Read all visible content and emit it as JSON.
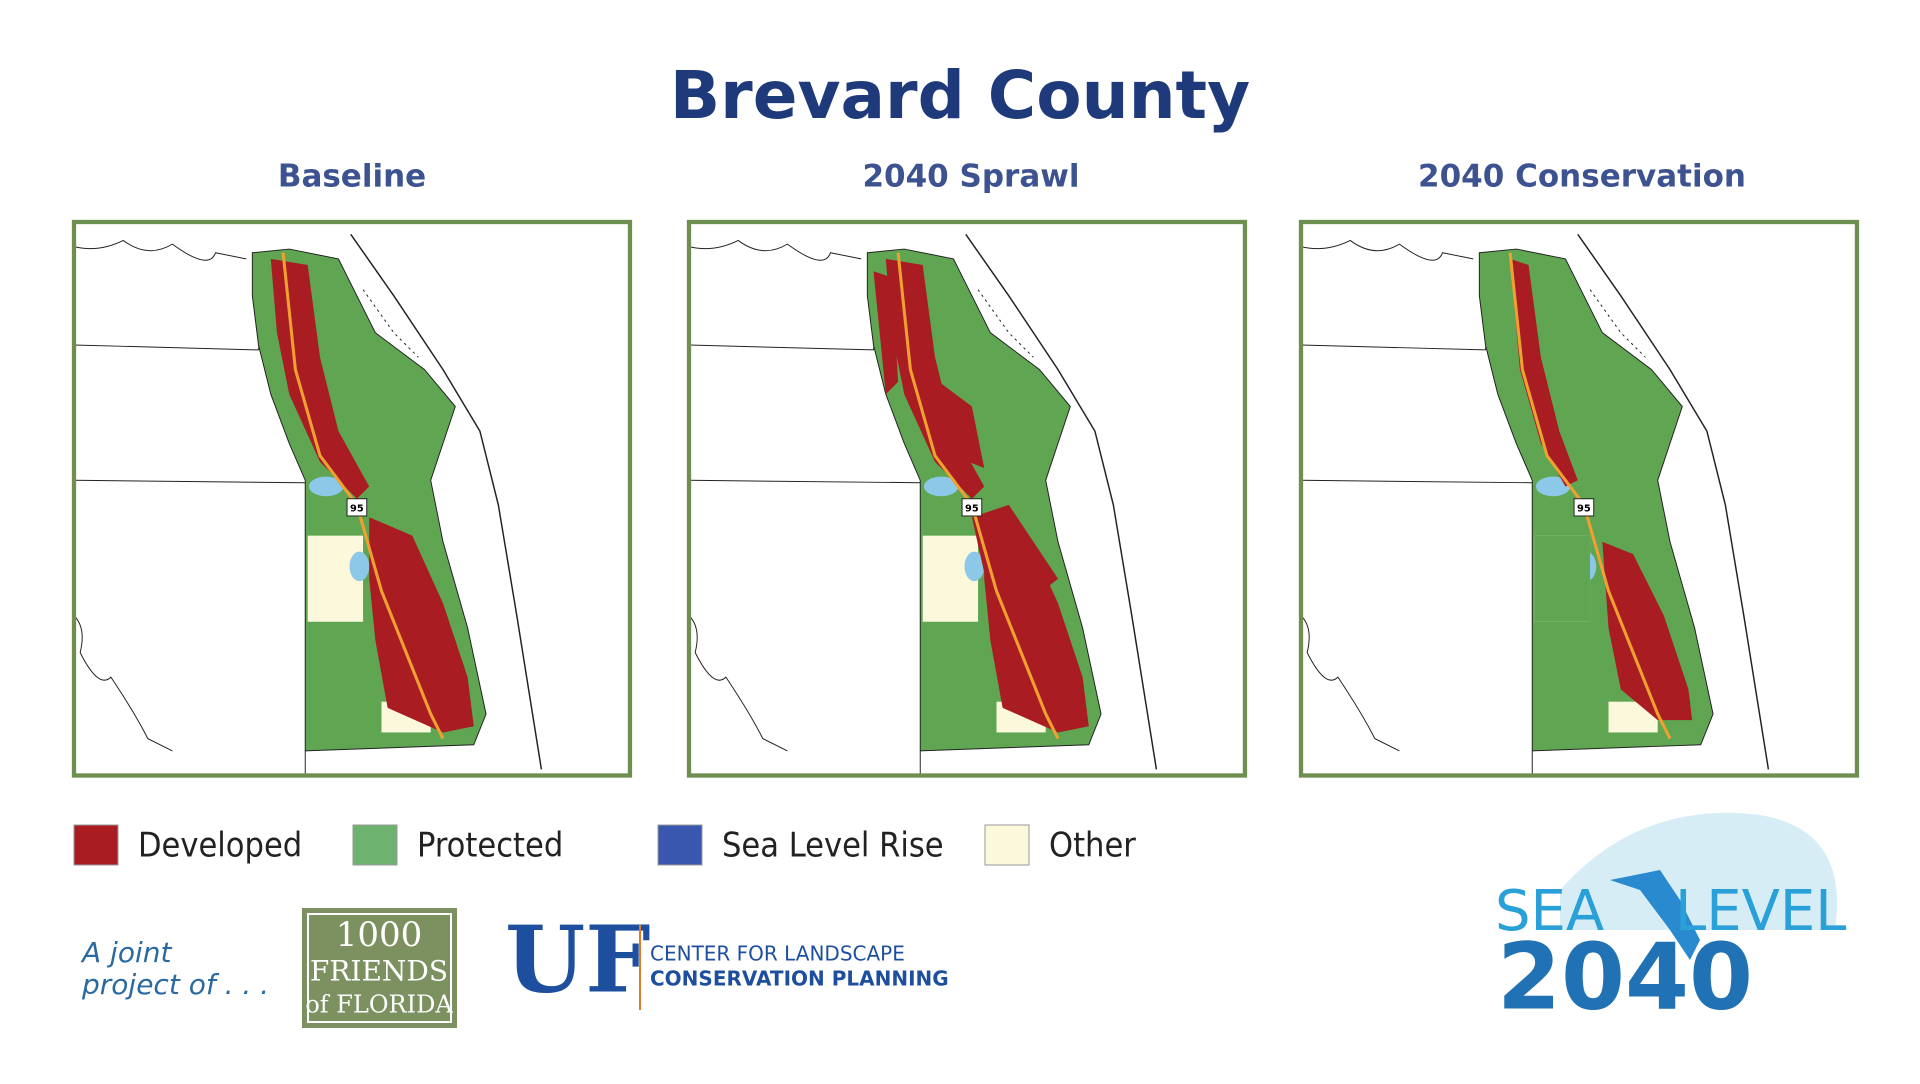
{
  "header": {
    "title": "Brevard County"
  },
  "panels": [
    {
      "title": "Baseline"
    },
    {
      "title": "2040 Sprawl"
    },
    {
      "title": "2040 Conservation"
    }
  ],
  "map": {
    "highway_label": "95"
  },
  "legend": [
    {
      "label": "Developed",
      "color": "#a81c22"
    },
    {
      "label": "Protected",
      "color": "#6db26f"
    },
    {
      "label": "Sea Level Rise",
      "color": "#3a57b0"
    },
    {
      "label": "Other",
      "color": "#fbf8dc"
    }
  ],
  "footer": {
    "joint": [
      "A joint",
      "project of . . ."
    ],
    "friends": [
      "1000",
      "FRIENDS",
      "of FLORIDA"
    ],
    "uf": {
      "mark": "UF",
      "lines": [
        "CENTER FOR LANDSCAPE",
        "CONSERVATION PLANNING"
      ]
    },
    "sea_level": {
      "words": [
        "SEA",
        "LEVEL"
      ],
      "year": "2040"
    }
  }
}
